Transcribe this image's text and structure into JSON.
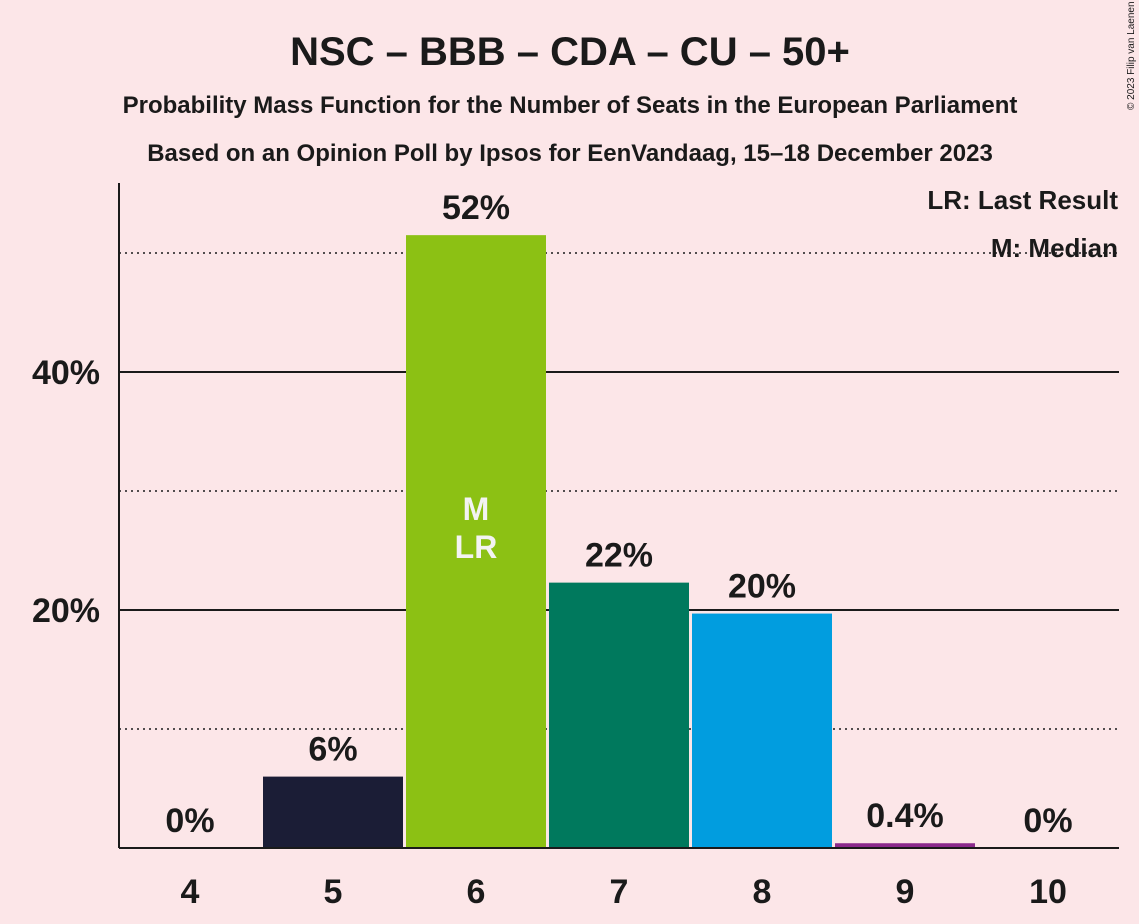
{
  "chart_data": {
    "type": "bar",
    "title": "NSC – BBB – CDA – CU – 50+",
    "subtitle1": "Probability Mass Function for the Number of Seats in the European Parliament",
    "subtitle2": "Based on an Opinion Poll by Ipsos for EenVandaag, 15–18 December 2023",
    "copyright": "© 2023 Filip van Laenen",
    "legend": [
      "LR: Last Result",
      "M: Median"
    ],
    "legend_position": "top-right",
    "categories": [
      "4",
      "5",
      "6",
      "7",
      "8",
      "9",
      "10"
    ],
    "values": [
      0,
      6.0,
      51.5,
      22.3,
      19.7,
      0.4,
      0
    ],
    "value_labels": [
      "0%",
      "6%",
      "52%",
      "22%",
      "20%",
      "0.4%",
      "0%"
    ],
    "bar_colors": [
      "#1b1d36",
      "#1b1d36",
      "#8cc114",
      "#00795d",
      "#019ddf",
      "#8b2a8c",
      "#1b1d36"
    ],
    "ylim": [
      0,
      56
    ],
    "y_ticks_labeled": [
      {
        "value": 20,
        "label": "20%"
      },
      {
        "value": 40,
        "label": "40%"
      }
    ],
    "y_grid_dotted": [
      10,
      30,
      50
    ],
    "median_category": "6",
    "last_result_category": "6",
    "inside_labels": [
      "M",
      "LR"
    ]
  }
}
